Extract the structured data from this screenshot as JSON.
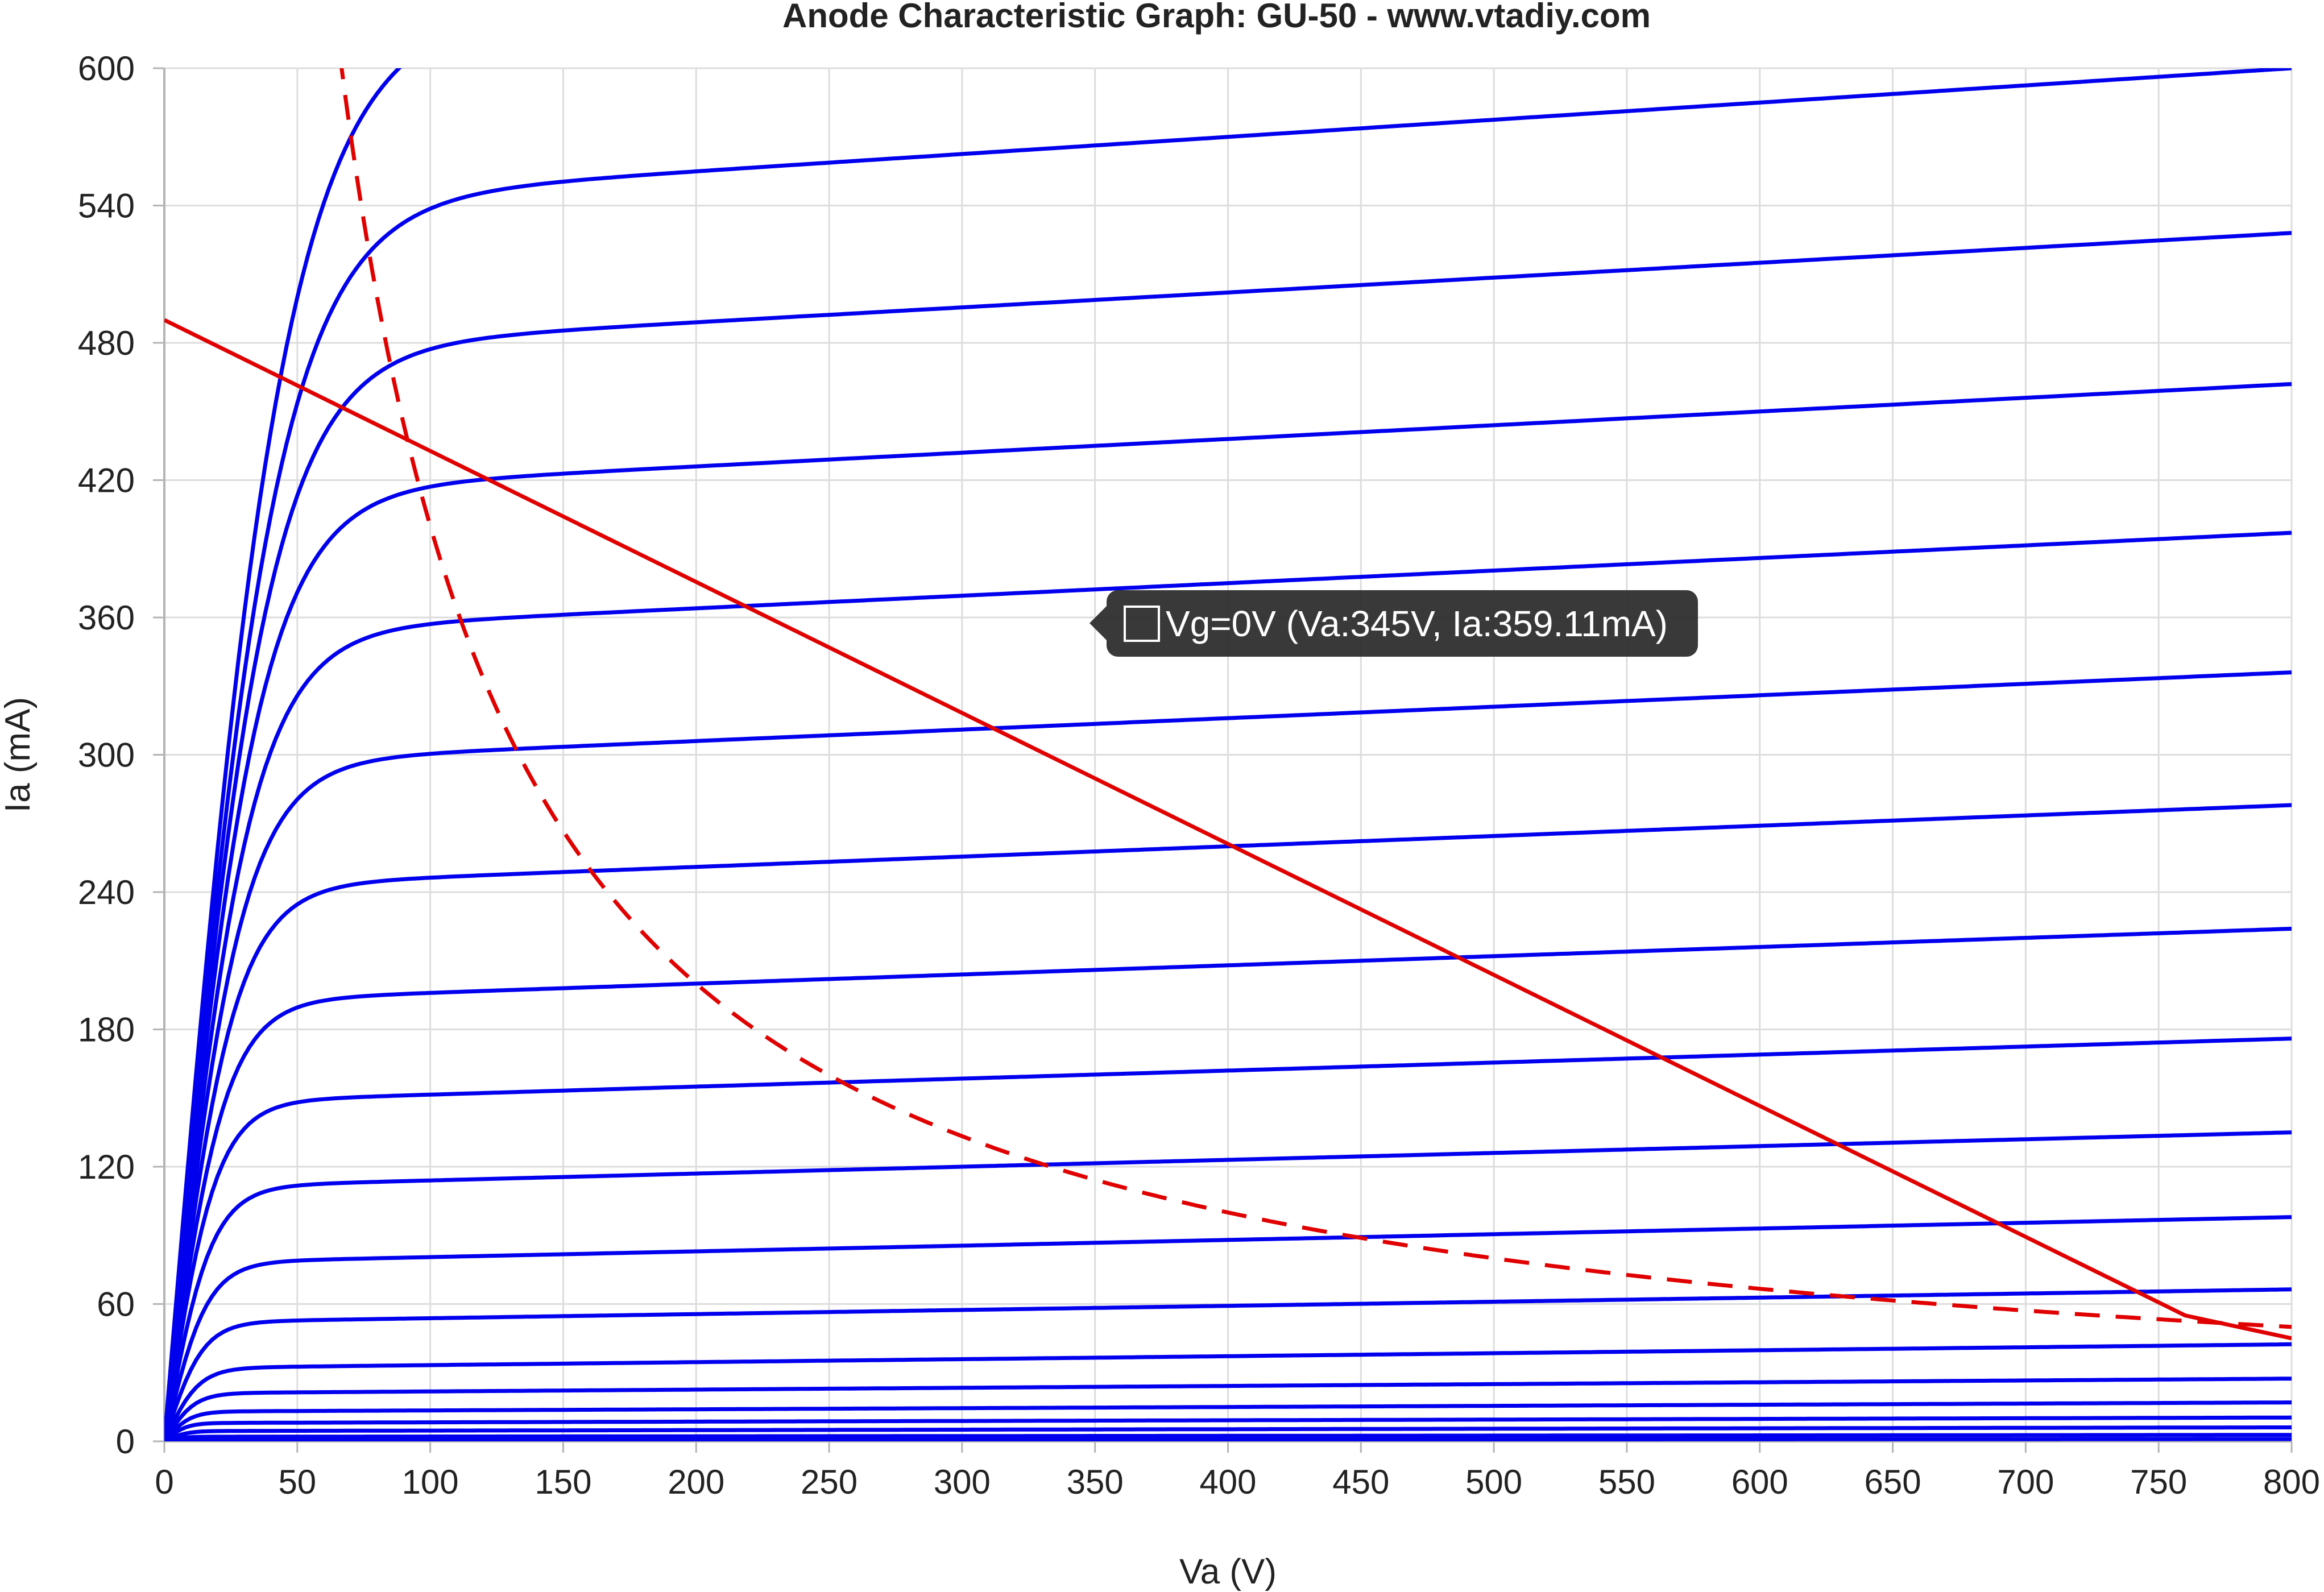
{
  "chart_data": {
    "type": "line",
    "title": "Anode Characteristic Graph: GU-50 - www.vtadiy.com",
    "xlabel": "Va (V)",
    "ylabel": "Ia (mA)",
    "xlim": [
      0,
      800
    ],
    "ylim": [
      0,
      600
    ],
    "x_ticks": [
      0,
      50,
      100,
      150,
      200,
      250,
      300,
      350,
      400,
      450,
      500,
      550,
      600,
      650,
      700,
      750,
      800
    ],
    "y_ticks": [
      0,
      60,
      120,
      180,
      240,
      300,
      360,
      420,
      480,
      540,
      600
    ],
    "grid": true,
    "colors": {
      "curves": "#0000ee",
      "overlays": "#e00000",
      "grid": "#dddddd",
      "axis": "#b4b4b4",
      "text": "#222222"
    },
    "curve_family": [
      {
        "sat": 615,
        "slope": 0.1,
        "knee": 28
      },
      {
        "sat": 540,
        "slope": 0.075,
        "knee": 26
      },
      {
        "sat": 476,
        "slope": 0.065,
        "knee": 24
      },
      {
        "sat": 414,
        "slope": 0.06,
        "knee": 22
      },
      {
        "sat": 353,
        "slope": 0.055,
        "knee": 20
      },
      {
        "sat": 296,
        "slope": 0.05,
        "knee": 18
      },
      {
        "sat": 242,
        "slope": 0.045,
        "knee": 16
      },
      {
        "sat": 192,
        "slope": 0.04,
        "knee": 14
      },
      {
        "sat": 148,
        "slope": 0.035,
        "knee": 12
      },
      {
        "sat": 111,
        "slope": 0.03,
        "knee": 11
      },
      {
        "sat": 78,
        "slope": 0.025,
        "knee": 10
      },
      {
        "sat": 52,
        "slope": 0.018,
        "knee": 9
      },
      {
        "sat": 32,
        "slope": 0.013,
        "knee": 8
      },
      {
        "sat": 21,
        "slope": 0.008,
        "knee": 7
      },
      {
        "sat": 13,
        "slope": 0.005,
        "knee": 6
      },
      {
        "sat": 8,
        "slope": 0.003,
        "knee": 5
      },
      {
        "sat": 4.5,
        "slope": 0.002,
        "knee": 5
      },
      {
        "sat": 2,
        "slope": 0.001,
        "knee": 4
      },
      {
        "sat": 0.6,
        "slope": 0.0005,
        "knee": 4
      }
    ],
    "load_line": {
      "x": [
        0,
        760,
        800
      ],
      "y": [
        490,
        55,
        45
      ]
    },
    "max_dissipation_w": 40,
    "dissipation_x_range": [
      66,
      800
    ],
    "tooltip": {
      "series": "Vg=0V",
      "va": 345,
      "ia": 359.11,
      "text": "Vg=0V (Va:345V, Ia:359.11mA)"
    }
  }
}
